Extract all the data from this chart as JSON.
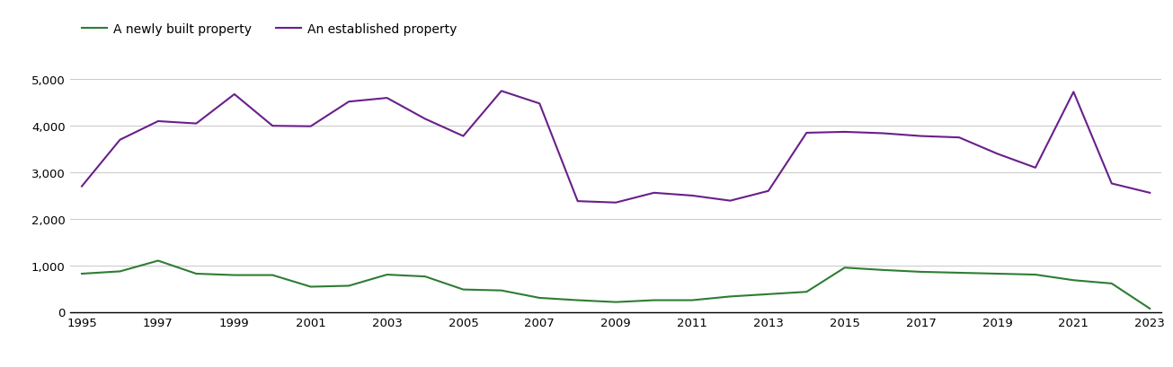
{
  "years": [
    1995,
    1996,
    1997,
    1998,
    1999,
    2000,
    2001,
    2002,
    2003,
    2004,
    2005,
    2006,
    2007,
    2008,
    2009,
    2010,
    2011,
    2012,
    2013,
    2014,
    2015,
    2016,
    2017,
    2018,
    2019,
    2020,
    2021,
    2022,
    2023
  ],
  "new_homes": [
    820,
    870,
    1100,
    820,
    790,
    790,
    540,
    560,
    800,
    760,
    480,
    460,
    300,
    250,
    210,
    250,
    250,
    330,
    380,
    430,
    950,
    900,
    860,
    840,
    820,
    800,
    680,
    610,
    70
  ],
  "established_homes": [
    2700,
    3700,
    4100,
    4050,
    4680,
    4000,
    3990,
    4520,
    4600,
    4150,
    3780,
    4750,
    4480,
    2380,
    2350,
    2560,
    2500,
    2390,
    2600,
    3850,
    3870,
    3840,
    3780,
    3750,
    3400,
    3100,
    4730,
    2760,
    2560
  ],
  "new_color": "#2e7d32",
  "established_color": "#6a1f8a",
  "legend_new": "A newly built property",
  "legend_established": "An established property",
  "ylim": [
    0,
    5300
  ],
  "yticks": [
    0,
    1000,
    2000,
    3000,
    4000,
    5000
  ],
  "background_color": "#ffffff",
  "grid_color": "#cccccc",
  "tick_fontsize": 9.5,
  "legend_fontsize": 10
}
